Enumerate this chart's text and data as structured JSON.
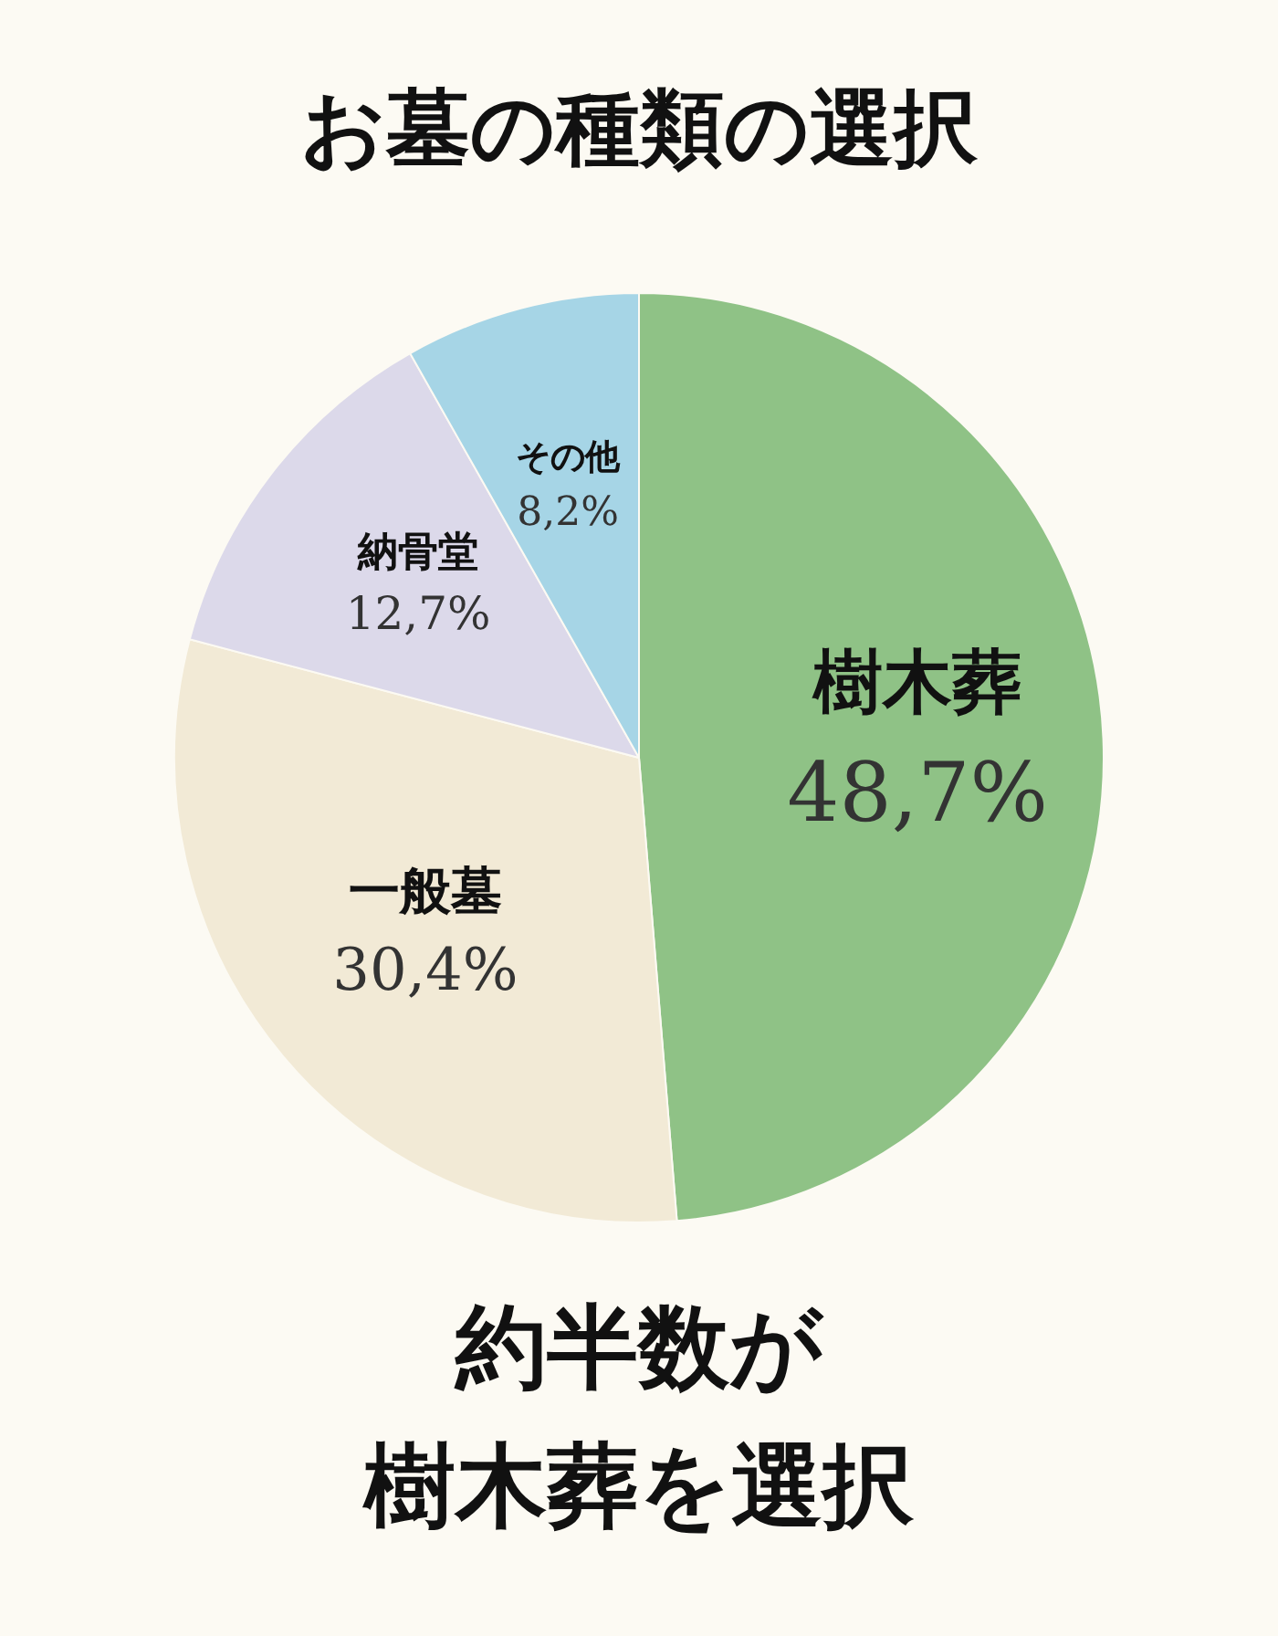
{
  "chart_data": {
    "type": "pie",
    "title": "お墓の種類の選択",
    "categories": [
      "樹木葬",
      "一般墓",
      "納骨堂",
      "その他"
    ],
    "values": [
      48.7,
      30.4,
      12.7,
      8.2
    ],
    "value_labels": [
      "48,7%",
      "30,4%",
      "12,7%",
      "8,2%"
    ],
    "colors": [
      "#8fc286",
      "#f2ead6",
      "#dcd9ea",
      "#a6d5e6"
    ],
    "annotations": [
      "約半数が",
      "樹木葬を選択"
    ],
    "legend": false
  }
}
